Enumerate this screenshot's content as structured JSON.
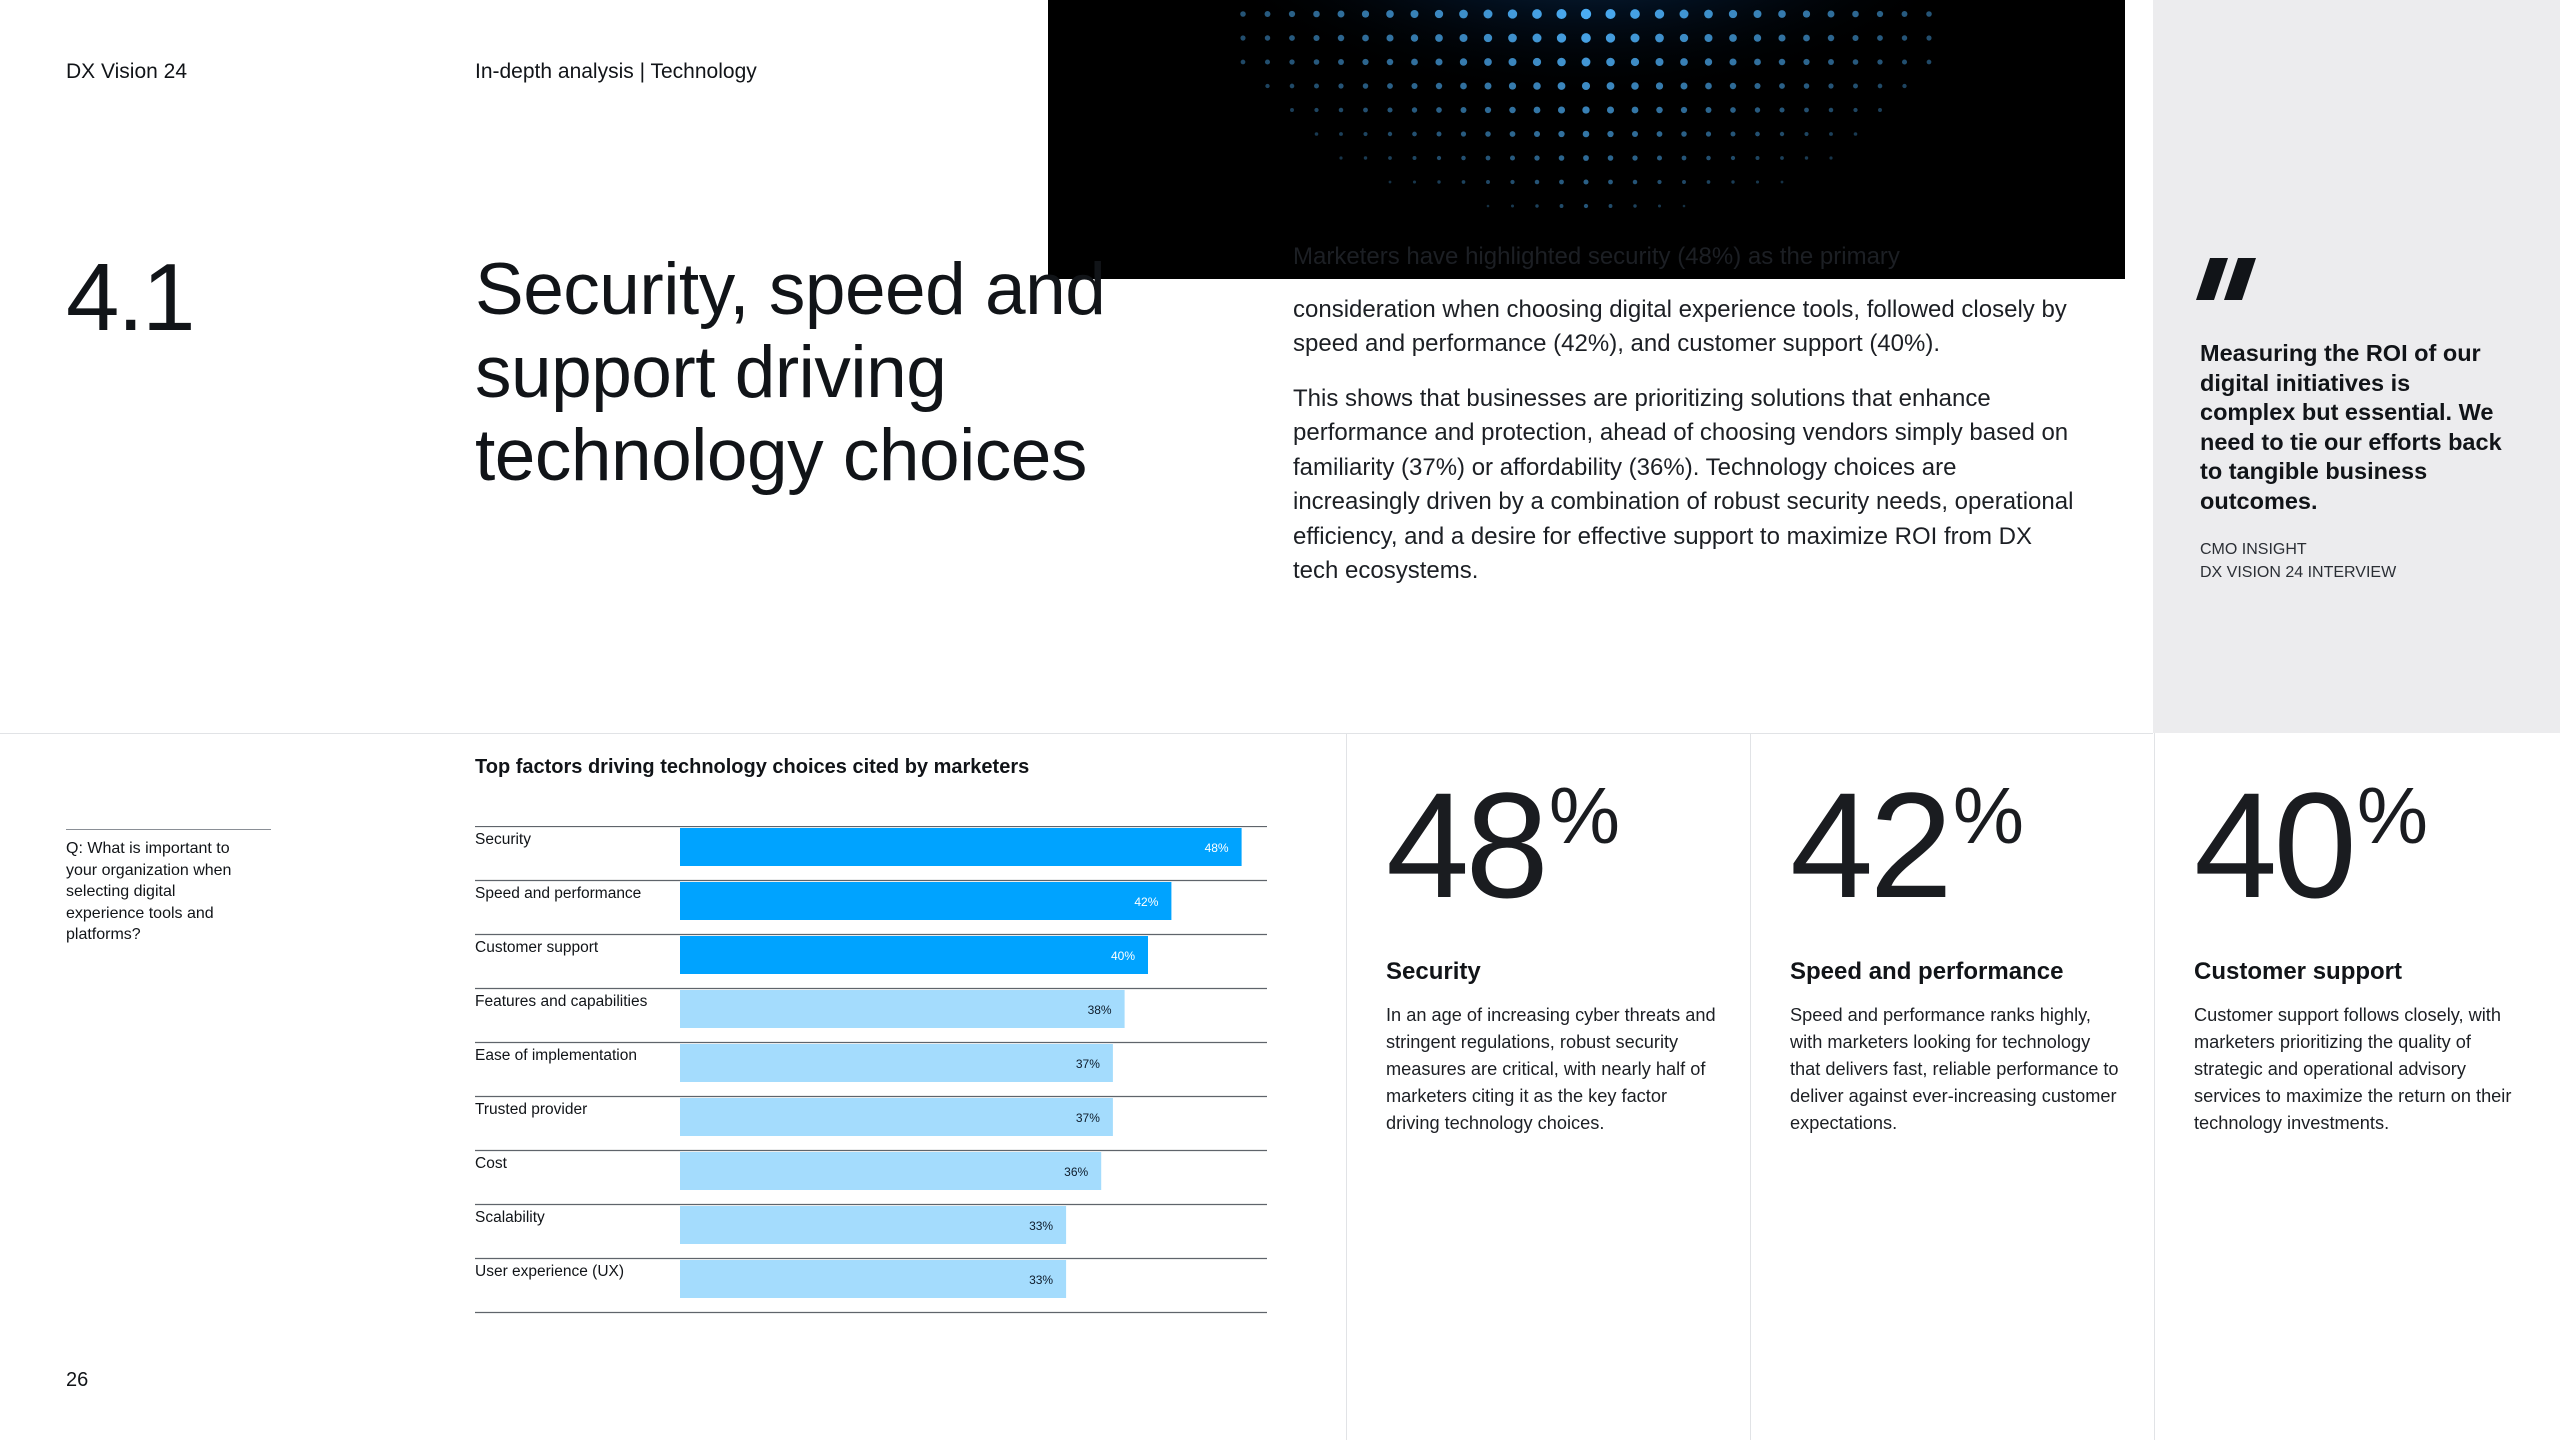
{
  "header": {
    "publication": "DX Vision 24",
    "section": "In-depth analysis | Technology"
  },
  "section_number": "4.1",
  "heading": "Security, speed and support driving technology choices",
  "intro": {
    "paragraph_1_clipped": "Marketers have highlighted security (48%) as the primary",
    "paragraph_1": "consideration when choosing digital experience tools, followed closely by speed and performance (42%), and customer support (40%).",
    "paragraph_2": "This shows that businesses are prioritizing solutions that enhance performance and protection, ahead of choosing vendors simply based on familiarity (37%) or affordability (36%). Technology choices are increasingly driven by a combination of robust security needs, operational efficiency, and a desire for effective support to maximize ROI from DX tech ecosystems."
  },
  "quote": {
    "text": "Measuring the ROI of our digital initiatives is complex but essential. We need to tie our efforts back to tangible business outcomes.",
    "source_line_1": "CMO insight",
    "source_line_2": "DX Vision 24 interview"
  },
  "question": "Q: What is important to your organization when selecting digital experience tools and platforms?",
  "chart_data": {
    "type": "bar",
    "orientation": "horizontal",
    "title": "Top factors driving technology choices cited by marketers",
    "categories": [
      "Security",
      "Speed and performance",
      "Customer support",
      "Features and capabilities",
      "Ease of implementation",
      "Trusted provider",
      "Cost",
      "Scalability",
      "User experience (UX)"
    ],
    "values": [
      48,
      42,
      40,
      38,
      37,
      37,
      36,
      33,
      33
    ],
    "labels": [
      "48%",
      "42%",
      "40%",
      "38%",
      "37%",
      "37%",
      "36%",
      "33%",
      "33%"
    ],
    "unit": "%",
    "xlim": [
      0,
      50
    ],
    "highlight_count": 3,
    "colors": {
      "highlight": "#00a3ff",
      "normal": "#a4dcfd",
      "highlight_label": "#ffffff",
      "normal_label": "#0d1b2a",
      "rule": "#5f646b"
    }
  },
  "stats": [
    {
      "value": "48",
      "unit": "%",
      "title": "Security",
      "description": "In an age of increasing cyber threats and stringent regulations, robust security measures are critical, with nearly half of marketers citing it as the key factor driving technology choices."
    },
    {
      "value": "42",
      "unit": "%",
      "title": "Speed and performance",
      "description": "Speed and performance ranks highly, with marketers looking for technology that delivers fast, reliable performance to deliver against ever-increasing customer expectations."
    },
    {
      "value": "40",
      "unit": "%",
      "title": "Customer support",
      "description": "Customer support follows closely, with marketers prioritizing the quality of strategic and operational advisory services to maximize the return on their technology investments."
    }
  ],
  "page_number": "26",
  "hero": {
    "icon": "dot-sphere-graphic"
  },
  "colors": {
    "accent": "#00a3ff",
    "quote_panel": "#ececee",
    "text": "#111418"
  }
}
